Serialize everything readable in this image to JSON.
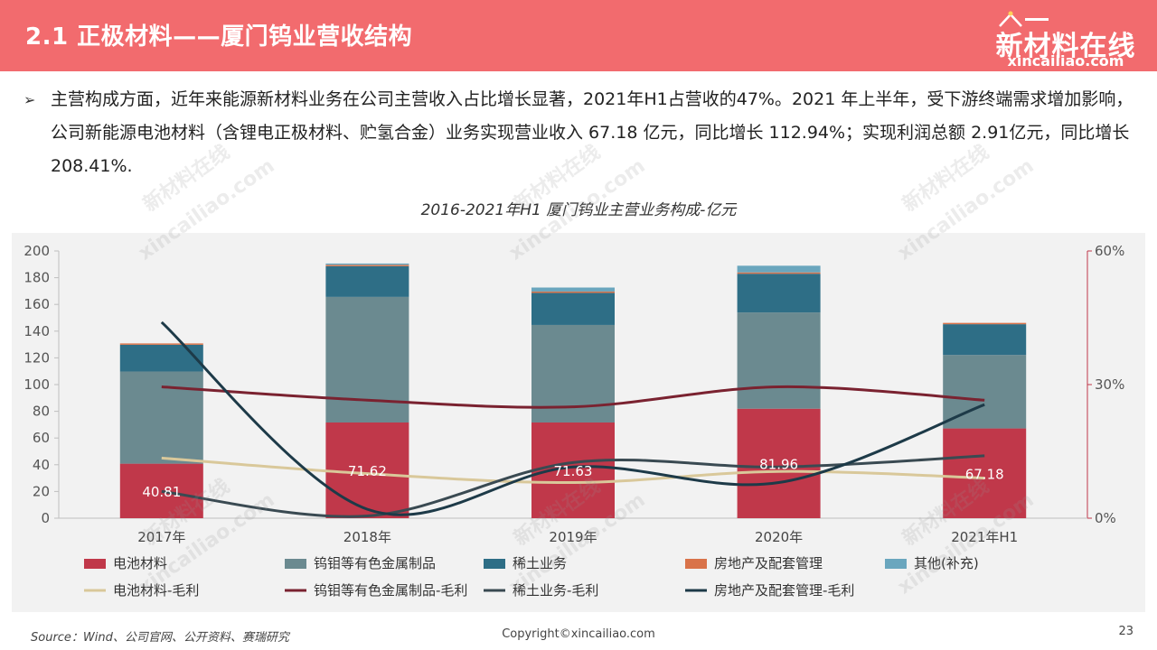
{
  "header": {
    "title": "2.1 正极材料——厦门钨业营收结构",
    "logo_cn": "新材料在线",
    "logo_en": "xincailiao.com"
  },
  "bullet": {
    "mark": "➢",
    "text": "主营构成方面，近年来能源新材料业务在公司主营收入占比增长显著，2021年H1占营收的47%。2021 年上半年，受下游终端需求增加影响，公司新能源电池材料（含锂电正极材料、贮氢合金）业务实现营业收入 67.18 亿元，同比增长 112.94%；实现利润总额 2.91亿元，同比增长 208.41%."
  },
  "watermarks": [
    "新材料在线",
    "xincailiao.com"
  ],
  "chart_data": {
    "type": "bar",
    "stacked": true,
    "title": "2016-2021年H1 厦门钨业主营业务构成-亿元",
    "categories": [
      "2017年",
      "2018年",
      "2019年",
      "2020年",
      "2021年H1"
    ],
    "ylim_left": [
      0,
      200
    ],
    "yticks_left": [
      0,
      20,
      40,
      60,
      80,
      100,
      120,
      140,
      160,
      180,
      200
    ],
    "ylim_right": [
      0,
      60
    ],
    "yticks_right": [
      "0%",
      "30%",
      "60%"
    ],
    "grid": false,
    "legend_position": "bottom",
    "bar_series": [
      {
        "name": "电池材料",
        "color": "#c0384a",
        "values": [
          40.81,
          71.62,
          71.63,
          81.96,
          67.18
        ]
      },
      {
        "name": "钨钼等有色金属制品",
        "color": "#6b8a90",
        "values": [
          69,
          94,
          73,
          72,
          55
        ]
      },
      {
        "name": "稀土业务",
        "color": "#2e6e86",
        "values": [
          20,
          23,
          24,
          29,
          23
        ]
      },
      {
        "name": "房地产及配套管理",
        "color": "#d9734a",
        "values": [
          1,
          1,
          1,
          1,
          1
        ]
      },
      {
        "name": "其他(补充)",
        "color": "#6aa6be",
        "values": [
          0,
          1,
          3,
          5,
          0
        ]
      }
    ],
    "data_labels": [
      "40.81",
      "71.62",
      "71.63",
      "81.96",
      "67.18"
    ],
    "line_series": [
      {
        "name": "电池材料-毛利",
        "color": "#d9c89a",
        "values": [
          13.5,
          10,
          8,
          10.5,
          9
        ]
      },
      {
        "name": "钨钼等有色金属制品-毛利",
        "color": "#7a2230",
        "values": [
          29.5,
          26.5,
          25,
          29.5,
          26.5
        ]
      },
      {
        "name": "稀土业务-毛利",
        "color": "#3a4a52",
        "values": [
          6,
          0.5,
          12.5,
          11.5,
          14
        ]
      },
      {
        "name": "房地产及配套管理-毛利",
        "color": "#1d3a48",
        "values": [
          44,
          2,
          11.5,
          8,
          25.5
        ]
      }
    ]
  },
  "footer": {
    "source": "Source：Wind、公司官网、公开资料、赛瑞研究",
    "copyright": "Copyright©xincailiao.com",
    "page": "23"
  }
}
